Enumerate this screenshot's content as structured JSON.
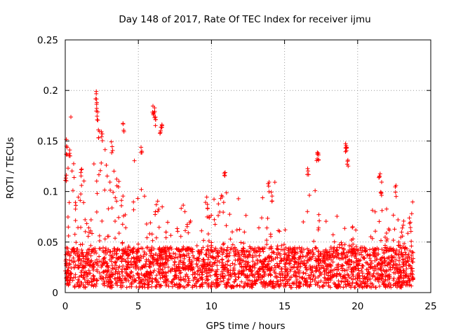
{
  "chart_data": {
    "type": "scatter",
    "title": "Day 148 of 2017, Rate Of TEC Index for receiver ijmu",
    "xlabel": "GPS time / hours",
    "ylabel": "ROTI / TECUs",
    "xlim": [
      0,
      25
    ],
    "ylim": [
      0,
      0.25
    ],
    "xticks": [
      0,
      5,
      10,
      15,
      20,
      25
    ],
    "yticks": [
      0,
      0.05,
      0.1,
      0.15,
      0.2,
      0.25
    ],
    "xtick_labels": [
      "0",
      "5",
      "10",
      "15",
      "20",
      "25"
    ],
    "ytick_labels": [
      "0",
      "0.05",
      "0.1",
      "0.15",
      "0.2",
      "0.25"
    ],
    "grid": true,
    "marker": "+",
    "series_color": "#ff0000",
    "x_data_range": [
      0,
      23.8
    ],
    "dense_band_max": 0.05,
    "notable_points": [
      {
        "x": 0.05,
        "y": 0.12
      },
      {
        "x": 0.1,
        "y": 0.145
      },
      {
        "x": 0.3,
        "y": 0.147
      },
      {
        "x": 1.1,
        "y": 0.127
      },
      {
        "x": 2.1,
        "y": 0.203
      },
      {
        "x": 2.15,
        "y": 0.19
      },
      {
        "x": 2.2,
        "y": 0.18
      },
      {
        "x": 2.3,
        "y": 0.163
      },
      {
        "x": 2.5,
        "y": 0.16
      },
      {
        "x": 3.2,
        "y": 0.15
      },
      {
        "x": 4.0,
        "y": 0.171
      },
      {
        "x": 5.2,
        "y": 0.15
      },
      {
        "x": 6.0,
        "y": 0.187
      },
      {
        "x": 6.1,
        "y": 0.183
      },
      {
        "x": 6.2,
        "y": 0.175
      },
      {
        "x": 6.5,
        "y": 0.167
      },
      {
        "x": 6.6,
        "y": 0.167
      },
      {
        "x": 9.7,
        "y": 0.095
      },
      {
        "x": 10.9,
        "y": 0.125
      },
      {
        "x": 13.9,
        "y": 0.11
      },
      {
        "x": 14.1,
        "y": 0.1
      },
      {
        "x": 16.6,
        "y": 0.125
      },
      {
        "x": 17.2,
        "y": 0.141
      },
      {
        "x": 17.3,
        "y": 0.14
      },
      {
        "x": 19.2,
        "y": 0.15
      },
      {
        "x": 19.25,
        "y": 0.146
      },
      {
        "x": 19.3,
        "y": 0.135
      },
      {
        "x": 21.5,
        "y": 0.12
      },
      {
        "x": 21.6,
        "y": 0.11
      },
      {
        "x": 22.6,
        "y": 0.106
      },
      {
        "x": 23.6,
        "y": 0.07
      }
    ]
  }
}
